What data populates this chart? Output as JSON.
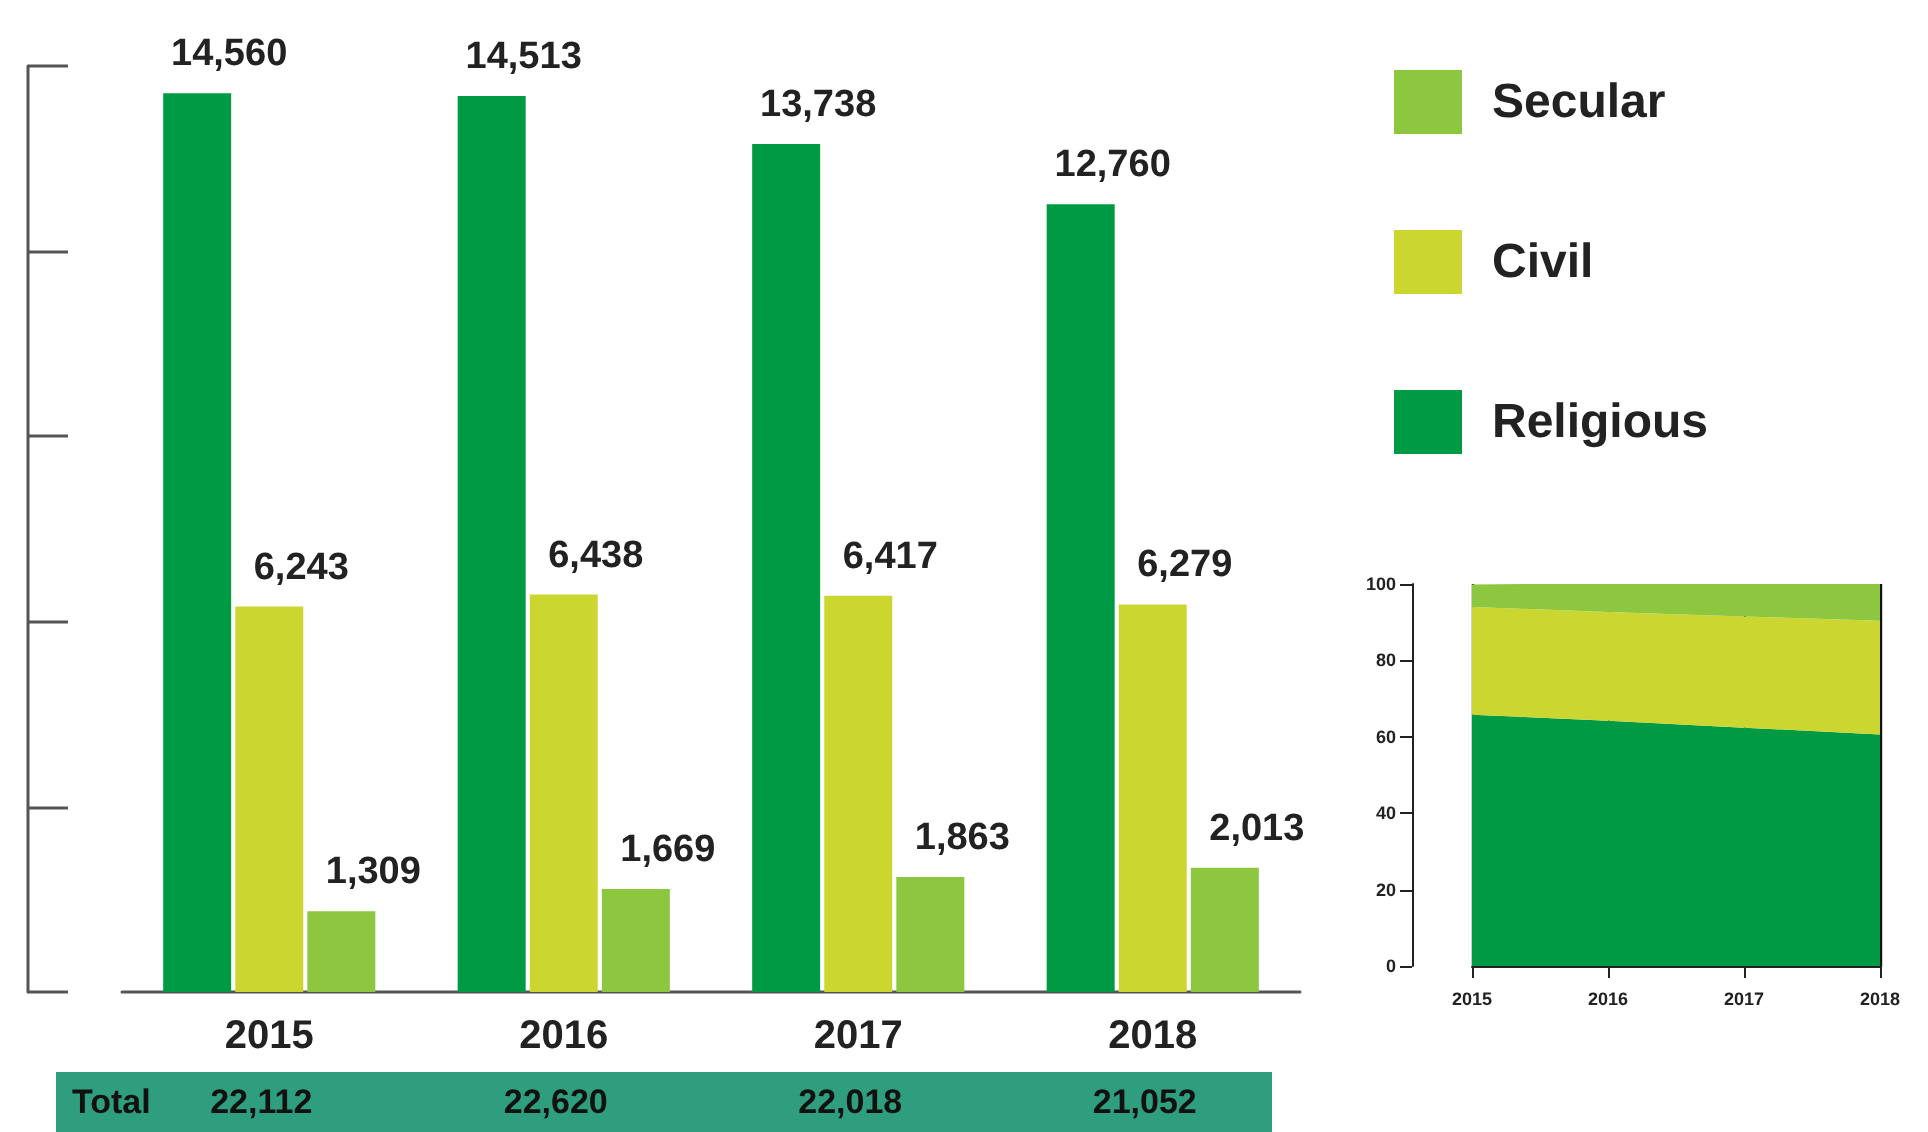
{
  "chart_data": [
    {
      "type": "bar",
      "categories": [
        "2015",
        "2016",
        "2017",
        "2018"
      ],
      "series": [
        {
          "name": "Religious",
          "color": "#009a44",
          "values": [
            14560,
            14513,
            13738,
            12760
          ],
          "value_labels": [
            "14,560",
            "14,513",
            "13,738",
            "12,760"
          ]
        },
        {
          "name": "Civil",
          "color": "#ccd630",
          "values": [
            6243,
            6438,
            6417,
            6279
          ],
          "value_labels": [
            "6,243",
            "6,438",
            "6,417",
            "6,279"
          ]
        },
        {
          "name": "Secular",
          "color": "#8dc63f",
          "values": [
            1309,
            1669,
            1863,
            2013
          ],
          "value_labels": [
            "1,309",
            "1,669",
            "1,863",
            "2,013"
          ]
        }
      ],
      "tick_labels": "x",
      "grid": false,
      "legend": "top right",
      "totals": [
        "22,112",
        "22,620",
        "22,018",
        "21,052"
      ],
      "annotations": [
        "Total"
      ]
    },
    {
      "type": "area",
      "stacked": true,
      "categories": [
        "2015",
        "2016",
        "2017",
        "2018"
      ],
      "series": [
        {
          "color": "#009a44",
          "values": [
            65.8,
            64.2,
            62.4,
            60.6
          ]
        },
        {
          "color": "#ccd630",
          "values": [
            28.2,
            28.5,
            29.1,
            29.8
          ]
        },
        {
          "color": "#8dc63f",
          "values": [
            5.9,
            7.4,
            8.5,
            9.6
          ]
        }
      ],
      "ylim": [
        0,
        100
      ],
      "yticks": [
        0,
        20,
        40,
        60,
        80,
        100
      ],
      "grid": "x",
      "legend": false
    }
  ]
}
